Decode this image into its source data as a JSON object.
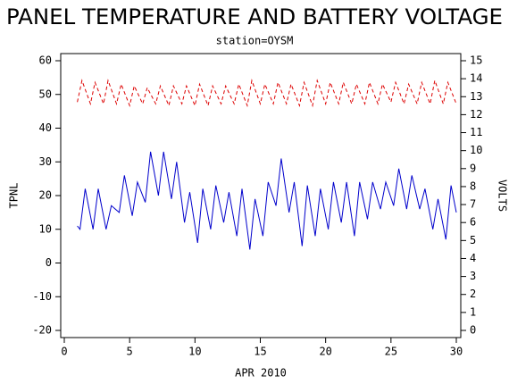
{
  "chart_data": {
    "type": "line",
    "title": "PANEL TEMPERATURE AND BATTERY VOLTAGE",
    "subtitle": "station=OYSM",
    "x_label": "APR 2010",
    "y_label": "TPNL",
    "y2_label": "VOLTS",
    "xlim": [
      0,
      30
    ],
    "xticks": [
      0,
      5,
      10,
      15,
      20,
      25,
      30
    ],
    "ylim": [
      -20,
      60
    ],
    "yticks": [
      -20,
      -10,
      0,
      10,
      20,
      30,
      40,
      50,
      60
    ],
    "y2lim": [
      0,
      15
    ],
    "y2ticks": [
      0,
      1,
      2,
      3,
      4,
      5,
      6,
      7,
      8,
      9,
      10,
      11,
      12,
      13,
      14,
      15
    ],
    "series": [
      {
        "color": "#0000cc",
        "dash": false,
        "x": [
          1.0,
          1.2,
          1.6,
          2.2,
          2.6,
          3.2,
          3.6,
          4.2,
          4.6,
          5.2,
          5.6,
          6.2,
          6.6,
          7.2,
          7.6,
          8.2,
          8.6,
          9.2,
          9.6,
          10.2,
          10.6,
          11.2,
          11.6,
          12.2,
          12.6,
          13.2,
          13.6,
          14.2,
          14.6,
          15.2,
          15.6,
          16.2,
          16.6,
          17.2,
          17.6,
          18.2,
          18.6,
          19.2,
          19.6,
          20.2,
          20.6,
          21.2,
          21.6,
          22.2,
          22.6,
          23.2,
          23.6,
          24.2,
          24.6,
          25.2,
          25.6,
          26.2,
          26.6,
          27.2,
          27.6,
          28.2,
          28.6,
          29.2,
          29.6,
          30.0
        ],
        "values": [
          11,
          10,
          22,
          10,
          22,
          10,
          17,
          15,
          26,
          14,
          24,
          18,
          33,
          20,
          33,
          19,
          30,
          12,
          21,
          6,
          22,
          10,
          23,
          12,
          21,
          8,
          22,
          4,
          19,
          8,
          24,
          17,
          31,
          15,
          24,
          5,
          23,
          8,
          22,
          10,
          24,
          12,
          24,
          8,
          24,
          13,
          24,
          16,
          24,
          17,
          28,
          16,
          26,
          16,
          22,
          10,
          19,
          7,
          23,
          15
        ]
      },
      {
        "color": "#dd0000",
        "dash": true,
        "axis": "y2",
        "x": [
          1.0,
          1.35,
          2.0,
          2.35,
          3.0,
          3.35,
          4.0,
          4.35,
          5.0,
          5.35,
          6.0,
          6.35,
          7.0,
          7.35,
          8.0,
          8.35,
          9.0,
          9.35,
          10.0,
          10.35,
          11.0,
          11.35,
          12.0,
          12.35,
          13.0,
          13.35,
          14.0,
          14.35,
          15.0,
          15.35,
          16.0,
          16.35,
          17.0,
          17.35,
          18.0,
          18.35,
          19.0,
          19.35,
          20.0,
          20.35,
          21.0,
          21.35,
          22.0,
          22.35,
          23.0,
          23.35,
          24.0,
          24.35,
          25.0,
          25.35,
          26.0,
          26.35,
          27.0,
          27.35,
          28.0,
          28.35,
          29.0,
          29.35,
          30.0
        ],
        "values": [
          12.7,
          13.9,
          12.6,
          13.8,
          12.6,
          13.9,
          12.6,
          13.7,
          12.5,
          13.6,
          12.6,
          13.5,
          12.6,
          13.6,
          12.5,
          13.6,
          12.6,
          13.6,
          12.5,
          13.7,
          12.5,
          13.6,
          12.6,
          13.6,
          12.6,
          13.7,
          12.5,
          13.9,
          12.6,
          13.7,
          12.6,
          13.8,
          12.6,
          13.7,
          12.5,
          13.8,
          12.5,
          13.9,
          12.6,
          13.8,
          12.6,
          13.8,
          12.6,
          13.7,
          12.6,
          13.8,
          12.6,
          13.7,
          12.7,
          13.8,
          12.6,
          13.7,
          12.6,
          13.8,
          12.6,
          13.9,
          12.6,
          13.8,
          12.6
        ]
      }
    ]
  }
}
